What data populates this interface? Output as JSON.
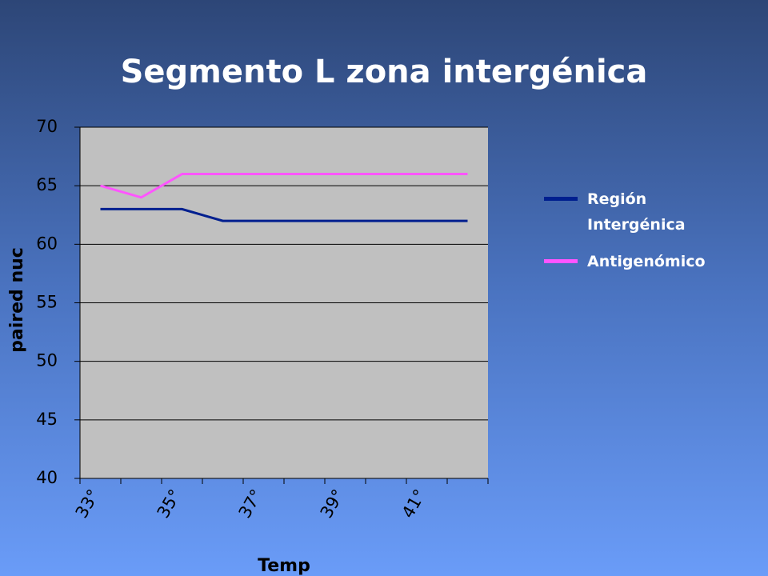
{
  "chart_data": {
    "type": "line",
    "title": "Segmento L zona intergénica",
    "x_label": "Temp",
    "y_label": "paired nuc",
    "categories": [
      "33°",
      null,
      "35°",
      null,
      "37°",
      null,
      "39°",
      null,
      "41°",
      null
    ],
    "series": [
      {
        "name": "Región Intergénica",
        "color": "#001f8f",
        "values": [
          63,
          63,
          63,
          62,
          62,
          62,
          62,
          62,
          62,
          62
        ]
      },
      {
        "name": "Antigenómico",
        "color": "#ff55ff",
        "values": [
          65,
          64,
          66,
          66,
          66,
          66,
          66,
          66,
          66,
          66
        ]
      }
    ],
    "ylim": [
      40,
      70
    ],
    "yticks": [
      40,
      45,
      50,
      55,
      60,
      65,
      70
    ],
    "grid": true
  }
}
